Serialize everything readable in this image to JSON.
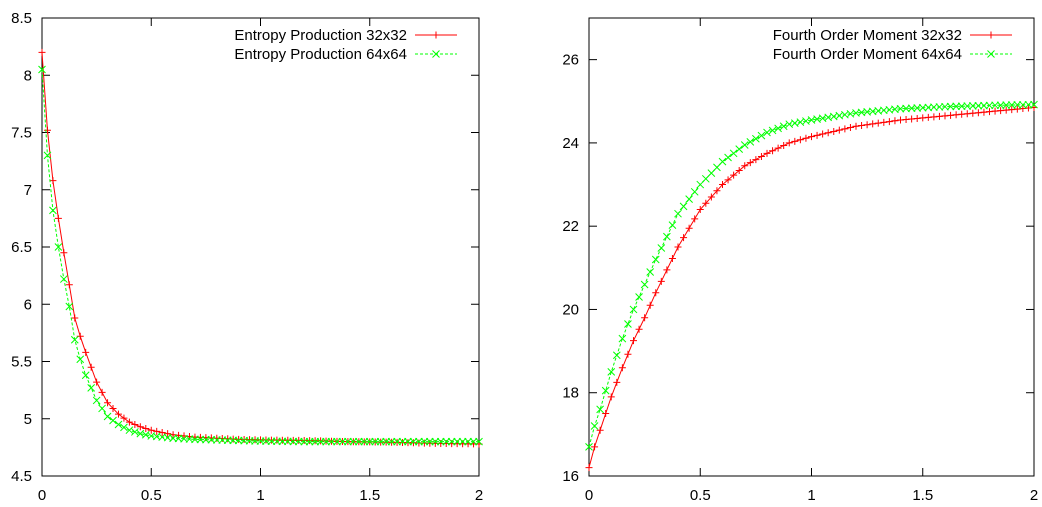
{
  "chart_data": [
    {
      "type": "line",
      "title": "",
      "xlabel": "",
      "ylabel": "",
      "xlim": [
        0,
        2
      ],
      "ylim": [
        4.5,
        8.5
      ],
      "xticks": [
        "0",
        "0.5",
        "1",
        "1.5",
        "2"
      ],
      "yticks": [
        "4.5",
        "5",
        "5.5",
        "6",
        "6.5",
        "7",
        "7.5",
        "8",
        "8.5"
      ],
      "grid": false,
      "legend_position": "top-right",
      "series": [
        {
          "name": "Entropy Production 32x32",
          "color": "#ff0000",
          "marker": "plus",
          "line": "solid",
          "x": [
            0,
            0.025,
            0.05,
            0.075,
            0.1,
            0.125,
            0.15,
            0.175,
            0.2,
            0.25,
            0.3,
            0.35,
            0.4,
            0.45,
            0.5,
            0.6,
            0.7,
            0.8,
            0.9,
            1.0,
            1.2,
            1.4,
            1.6,
            1.8,
            2.0
          ],
          "y": [
            8.2,
            7.52,
            7.08,
            6.75,
            6.45,
            6.17,
            5.88,
            5.72,
            5.58,
            5.32,
            5.14,
            5.04,
            4.97,
            4.93,
            4.9,
            4.86,
            4.84,
            4.83,
            4.82,
            4.815,
            4.81,
            4.8,
            4.795,
            4.785,
            4.78
          ]
        },
        {
          "name": "Entropy Production 64x64",
          "color": "#00ff00",
          "marker": "x",
          "line": "dashed",
          "x": [
            0,
            0.025,
            0.05,
            0.075,
            0.1,
            0.125,
            0.15,
            0.175,
            0.2,
            0.25,
            0.3,
            0.35,
            0.4,
            0.45,
            0.5,
            0.6,
            0.7,
            0.8,
            0.9,
            1.0,
            1.2,
            1.4,
            1.6,
            1.8,
            2.0
          ],
          "y": [
            8.05,
            7.3,
            6.82,
            6.5,
            6.22,
            5.98,
            5.69,
            5.52,
            5.38,
            5.16,
            5.02,
            4.95,
            4.9,
            4.87,
            4.85,
            4.83,
            4.82,
            4.815,
            4.81,
            4.805,
            4.8,
            4.8,
            4.8,
            4.8,
            4.8
          ]
        }
      ]
    },
    {
      "type": "line",
      "title": "",
      "xlabel": "",
      "ylabel": "",
      "xlim": [
        0,
        2
      ],
      "ylim": [
        16,
        27
      ],
      "xticks": [
        "0",
        "0.5",
        "1",
        "1.5",
        "2"
      ],
      "yticks": [
        "16",
        "18",
        "20",
        "22",
        "24",
        "26"
      ],
      "grid": false,
      "legend_position": "top-right",
      "series": [
        {
          "name": "Fourth Order Moment 32x32",
          "color": "#ff0000",
          "marker": "plus",
          "line": "solid",
          "x": [
            0,
            0.025,
            0.05,
            0.1,
            0.15,
            0.2,
            0.25,
            0.3,
            0.4,
            0.5,
            0.6,
            0.7,
            0.8,
            0.9,
            1.0,
            1.2,
            1.4,
            1.6,
            1.8,
            2.0
          ],
          "y": [
            16.2,
            16.7,
            17.1,
            17.9,
            18.6,
            19.25,
            19.8,
            20.4,
            21.5,
            22.4,
            23.0,
            23.45,
            23.75,
            24.0,
            24.15,
            24.4,
            24.55,
            24.65,
            24.75,
            24.85
          ]
        },
        {
          "name": "Fourth Order Moment 64x64",
          "color": "#00ff00",
          "marker": "x",
          "line": "dashed",
          "x": [
            0,
            0.025,
            0.05,
            0.1,
            0.15,
            0.2,
            0.25,
            0.3,
            0.4,
            0.5,
            0.6,
            0.7,
            0.8,
            0.9,
            1.0,
            1.2,
            1.4,
            1.6,
            1.8,
            2.0
          ],
          "y": [
            16.7,
            17.2,
            17.6,
            18.5,
            19.3,
            20.0,
            20.6,
            21.2,
            22.3,
            23.0,
            23.55,
            23.95,
            24.25,
            24.45,
            24.55,
            24.72,
            24.82,
            24.87,
            24.9,
            24.92
          ]
        }
      ]
    }
  ]
}
